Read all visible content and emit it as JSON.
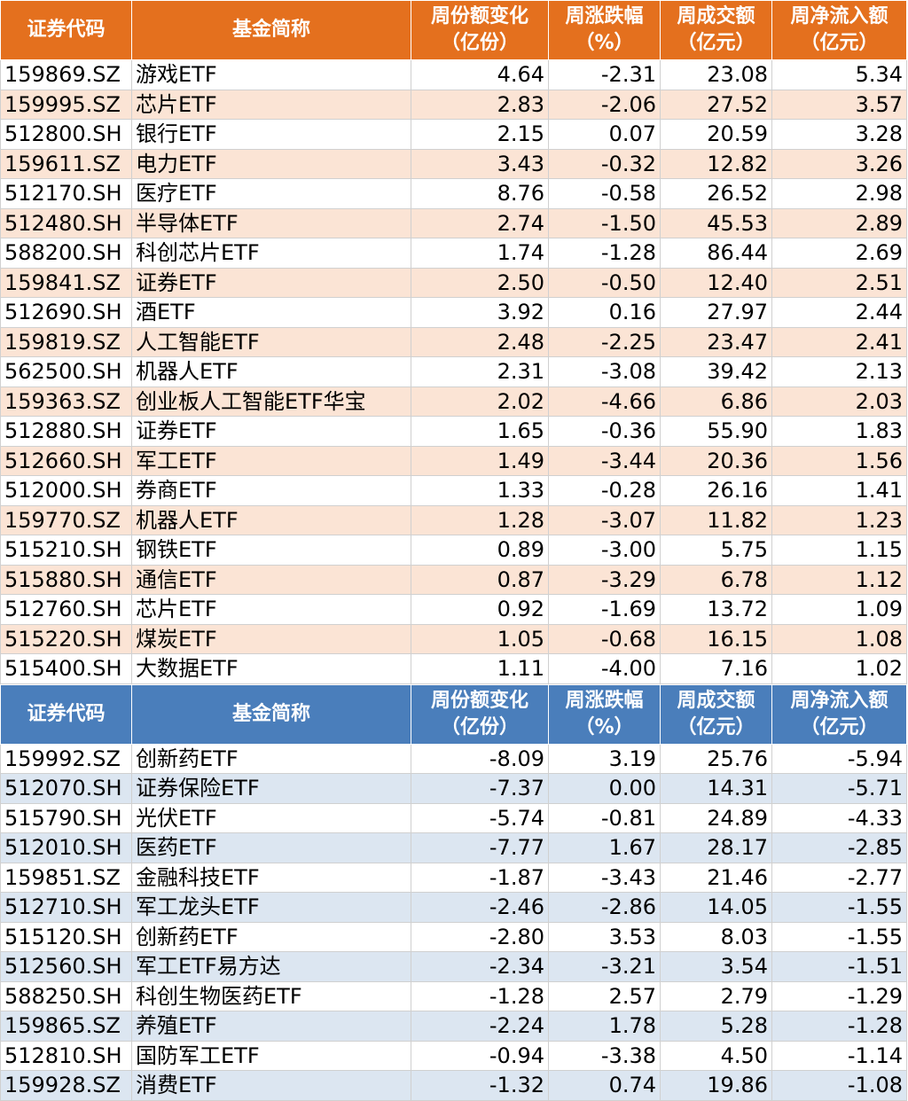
{
  "headers": {
    "code": "证券代码",
    "name": "基金简称",
    "share_change": [
      "周份额变化",
      "（亿份）"
    ],
    "pct_change": [
      "周涨跌幅",
      "（%）"
    ],
    "turnover": [
      "周成交额",
      "（亿元）"
    ],
    "net_inflow": [
      "周净流入额",
      "（亿元）"
    ]
  },
  "colors": {
    "orange_header": "#e4701e",
    "orange_stripe": "#fbe4d5",
    "blue_header": "#4a7ebb",
    "blue_stripe": "#dce6f1"
  },
  "inflow_rows": [
    [
      "159869.SZ",
      "游戏ETF",
      "4.64",
      "-2.31",
      "23.08",
      "5.34"
    ],
    [
      "159995.SZ",
      "芯片ETF",
      "2.83",
      "-2.06",
      "27.52",
      "3.57"
    ],
    [
      "512800.SH",
      "银行ETF",
      "2.15",
      "0.07",
      "20.59",
      "3.28"
    ],
    [
      "159611.SZ",
      "电力ETF",
      "3.43",
      "-0.32",
      "12.82",
      "3.26"
    ],
    [
      "512170.SH",
      "医疗ETF",
      "8.76",
      "-0.58",
      "26.52",
      "2.98"
    ],
    [
      "512480.SH",
      "半导体ETF",
      "2.74",
      "-1.50",
      "45.53",
      "2.89"
    ],
    [
      "588200.SH",
      "科创芯片ETF",
      "1.74",
      "-1.28",
      "86.44",
      "2.69"
    ],
    [
      "159841.SZ",
      "证券ETF",
      "2.50",
      "-0.50",
      "12.40",
      "2.51"
    ],
    [
      "512690.SH",
      "酒ETF",
      "3.92",
      "0.16",
      "27.97",
      "2.44"
    ],
    [
      "159819.SZ",
      "人工智能ETF",
      "2.48",
      "-2.25",
      "23.47",
      "2.41"
    ],
    [
      "562500.SH",
      "机器人ETF",
      "2.31",
      "-3.08",
      "39.42",
      "2.13"
    ],
    [
      "159363.SZ",
      "创业板人工智能ETF华宝",
      "2.02",
      "-4.66",
      "6.86",
      "2.03"
    ],
    [
      "512880.SH",
      "证券ETF",
      "1.65",
      "-0.36",
      "55.90",
      "1.83"
    ],
    [
      "512660.SH",
      "军工ETF",
      "1.49",
      "-3.44",
      "20.36",
      "1.56"
    ],
    [
      "512000.SH",
      "券商ETF",
      "1.33",
      "-0.28",
      "26.16",
      "1.41"
    ],
    [
      "159770.SZ",
      "机器人ETF",
      "1.28",
      "-3.07",
      "11.82",
      "1.23"
    ],
    [
      "515210.SH",
      "钢铁ETF",
      "0.89",
      "-3.00",
      "5.75",
      "1.15"
    ],
    [
      "515880.SH",
      "通信ETF",
      "0.87",
      "-3.29",
      "6.78",
      "1.12"
    ],
    [
      "512760.SH",
      "芯片ETF",
      "0.92",
      "-1.69",
      "13.72",
      "1.09"
    ],
    [
      "515220.SH",
      "煤炭ETF",
      "1.05",
      "-0.68",
      "16.15",
      "1.08"
    ],
    [
      "515400.SH",
      "大数据ETF",
      "1.11",
      "-4.00",
      "7.16",
      "1.02"
    ]
  ],
  "outflow_rows": [
    [
      "159992.SZ",
      "创新药ETF",
      "-8.09",
      "3.19",
      "25.76",
      "-5.94"
    ],
    [
      "512070.SH",
      "证券保险ETF",
      "-7.37",
      "0.00",
      "14.31",
      "-5.71"
    ],
    [
      "515790.SH",
      "光伏ETF",
      "-5.74",
      "-0.81",
      "24.89",
      "-4.33"
    ],
    [
      "512010.SH",
      "医药ETF",
      "-7.77",
      "1.67",
      "28.17",
      "-2.85"
    ],
    [
      "159851.SZ",
      "金融科技ETF",
      "-1.87",
      "-3.43",
      "21.46",
      "-2.77"
    ],
    [
      "512710.SH",
      "军工龙头ETF",
      "-2.46",
      "-2.86",
      "14.05",
      "-1.55"
    ],
    [
      "515120.SH",
      "创新药ETF",
      "-2.80",
      "3.53",
      "8.03",
      "-1.55"
    ],
    [
      "512560.SH",
      "军工ETF易方达",
      "-2.34",
      "-3.21",
      "3.54",
      "-1.51"
    ],
    [
      "588250.SH",
      "科创生物医药ETF",
      "-1.28",
      "2.57",
      "2.79",
      "-1.29"
    ],
    [
      "159865.SZ",
      "养殖ETF",
      "-2.24",
      "1.78",
      "5.28",
      "-1.28"
    ],
    [
      "512810.SH",
      "国防军工ETF",
      "-0.94",
      "-3.38",
      "4.50",
      "-1.14"
    ],
    [
      "159928.SZ",
      "消费ETF",
      "-1.32",
      "0.74",
      "19.86",
      "-1.08"
    ]
  ]
}
